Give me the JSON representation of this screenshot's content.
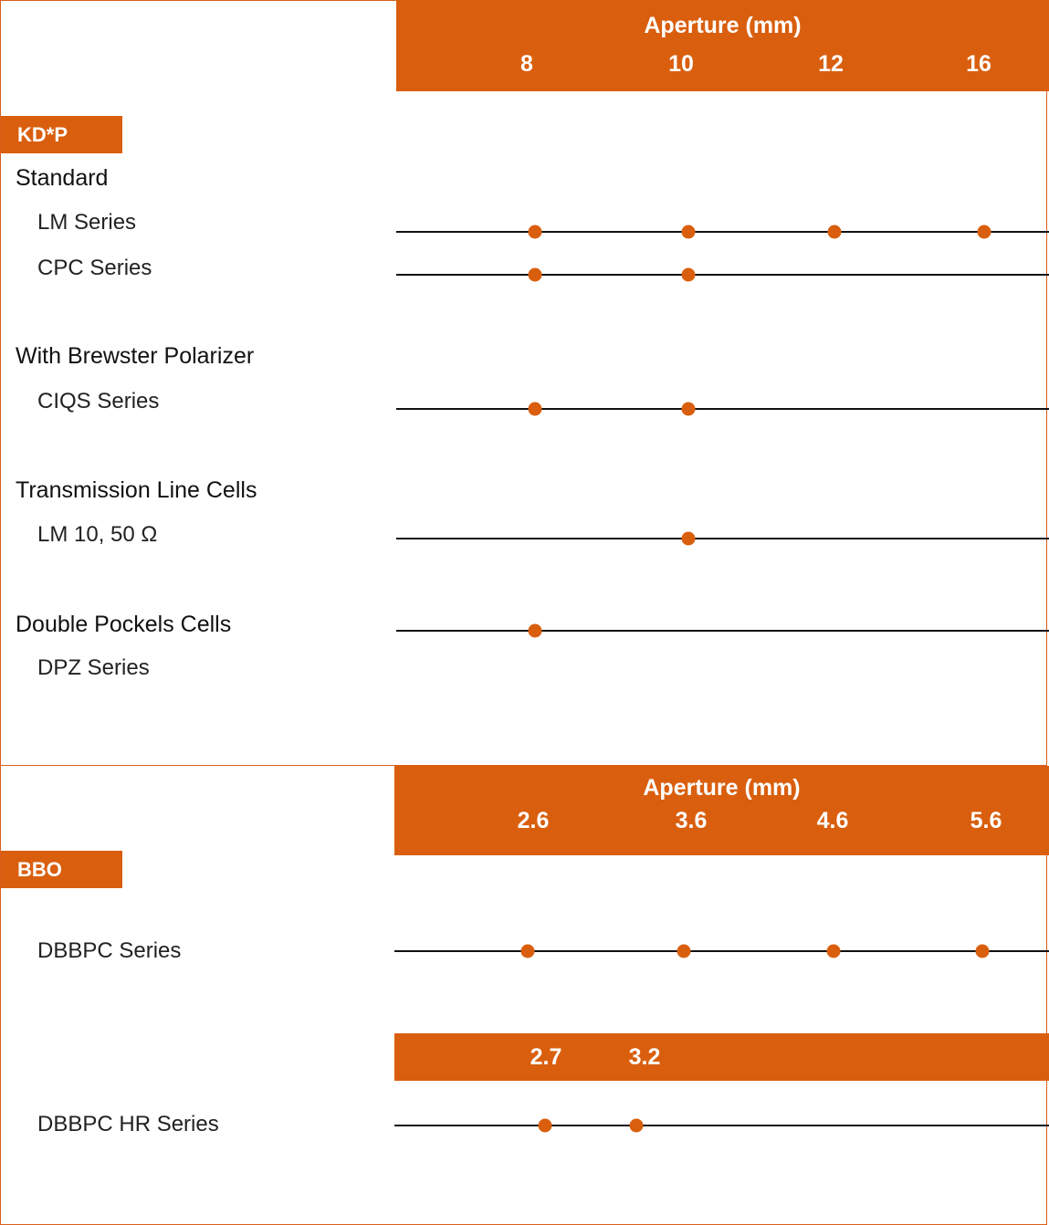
{
  "kdp": {
    "tag": "KD*P",
    "aperture_title": "Aperture (mm)",
    "apertures": [
      "8",
      "10",
      "12",
      "16"
    ],
    "groups": [
      {
        "heading": "Standard"
      },
      {
        "heading": "With Brewster Polarizer"
      },
      {
        "heading": "Transmission Line Cells"
      },
      {
        "heading": "Double Pockels Cells"
      }
    ],
    "items": [
      {
        "label": "LM Series",
        "apertures": [
          "8",
          "10",
          "12",
          "16"
        ]
      },
      {
        "label": "CPC Series",
        "apertures": [
          "8",
          "10"
        ]
      },
      {
        "label": "CIQS Series",
        "apertures": [
          "8",
          "10"
        ]
      },
      {
        "label": "LM 10, 50 Ω",
        "apertures": [
          "10"
        ]
      },
      {
        "label": "DPZ Series",
        "apertures": [
          "8"
        ]
      }
    ]
  },
  "bbo": {
    "tag": "BBO",
    "aperture_title": "Aperture (mm)",
    "apertures": [
      "2.6",
      "3.6",
      "4.6",
      "5.6"
    ],
    "apertures_hr": [
      "2.7",
      "3.2"
    ],
    "items": [
      {
        "label": "DBBPC Series",
        "apertures": [
          "2.6",
          "3.6",
          "4.6",
          "5.6"
        ]
      },
      {
        "label": "DBBPC HR Series",
        "apertures": [
          "2.7",
          "3.2"
        ]
      }
    ]
  },
  "colors": {
    "accent": "#d95f0e",
    "line": "#111111"
  }
}
